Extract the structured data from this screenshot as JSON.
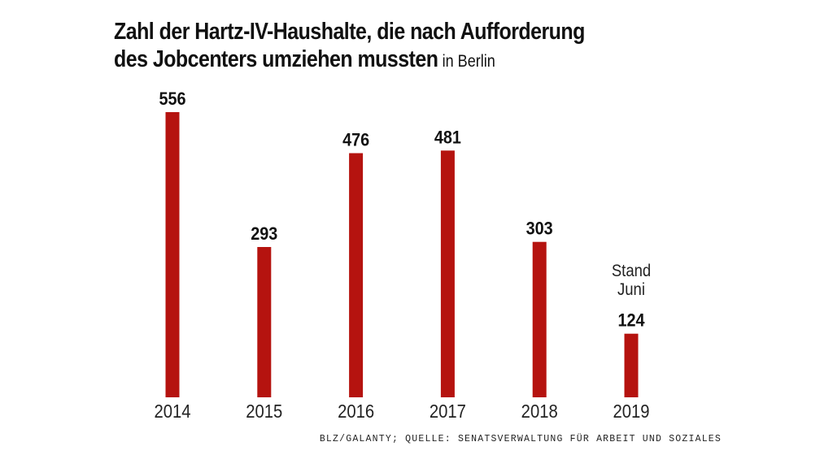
{
  "chart_data": {
    "type": "bar",
    "title": "Zahl der Hartz-IV-Haushalte, die nach Aufforderung des Jobcenters umziehen mussten",
    "subtitle": "in Berlin",
    "categories": [
      "2014",
      "2015",
      "2016",
      "2017",
      "2018",
      "2019"
    ],
    "values": [
      556,
      293,
      476,
      481,
      303,
      124
    ],
    "data_labels": [
      "556",
      "293",
      "476",
      "481",
      "303",
      "124"
    ],
    "annotations": [
      {
        "category": "2019",
        "text": "Stand Juni"
      }
    ],
    "bar_color": "#b5130f",
    "xlabel": "",
    "ylabel": "",
    "ylim": [
      0,
      556
    ],
    "grid": false,
    "legend": "none"
  },
  "title_line1": "Zahl der Hartz-IV-Haushalte, die nach Aufforderung",
  "title_line2": "des Jobcenters umziehen mussten",
  "subtitle": "in Berlin",
  "annotation_line1": "Stand",
  "annotation_line2": "Juni",
  "source": "BLZ/GALANTY; QUELLE: SENATSVERWALTUNG FÜR ARBEIT UND SOZIALES"
}
